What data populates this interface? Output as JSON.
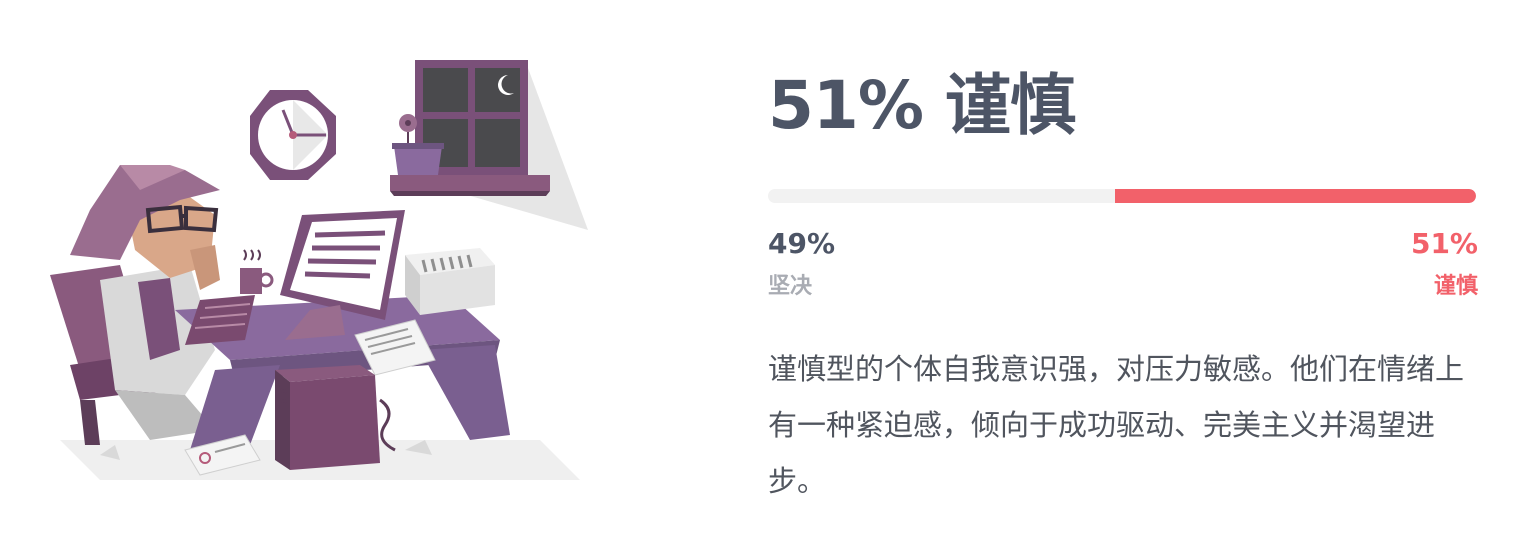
{
  "trait": {
    "headline": "51% 谨慎",
    "bar_fraction": 0.51,
    "left": {
      "percent": "49%",
      "label": "坚决"
    },
    "right": {
      "percent": "51%",
      "label": "谨慎"
    },
    "description": "谨慎型的个体自我意识强，对压力敏感。他们在情绪上有一种紧迫感，倾向于成功驱动、完美主义并渴望进步。"
  },
  "colors": {
    "accent": "#f2616a",
    "heading": "#4d5566",
    "muted": "#a9acb3",
    "track": "#f2f2f2"
  },
  "illustration": {
    "icons": [
      "clock-icon",
      "window-icon",
      "moon-icon",
      "flower-pot-icon",
      "person-figure",
      "computer-monitor-icon",
      "keyboard-icon",
      "coffee-mug-icon",
      "desk-icon",
      "chair-icon",
      "computer-tower-icon",
      "papers-icon"
    ]
  }
}
